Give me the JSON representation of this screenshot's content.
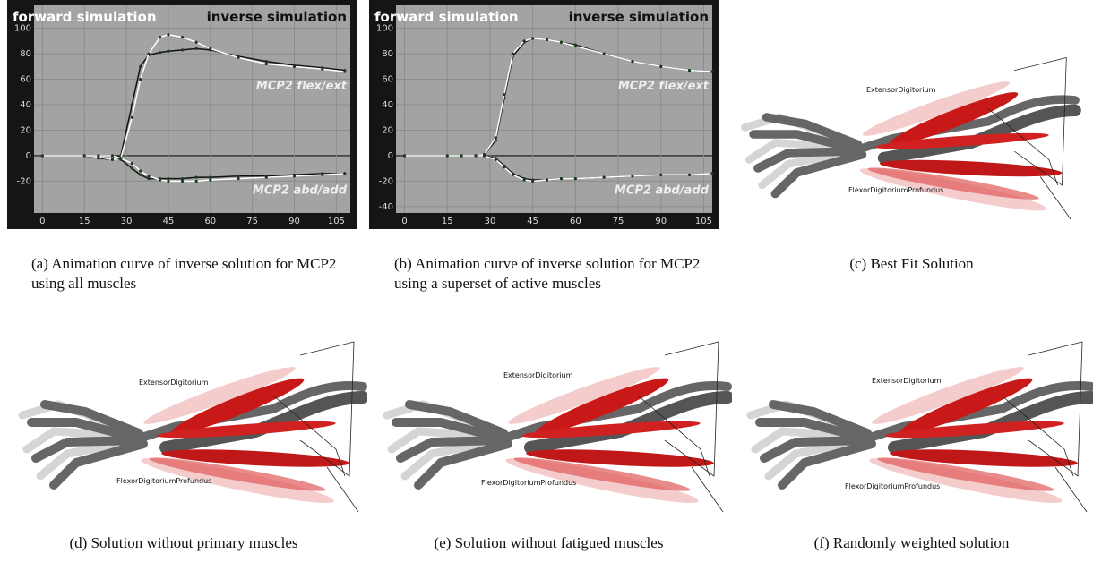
{
  "chart_data": [
    {
      "type": "line",
      "x": [
        0,
        15,
        20,
        25,
        28,
        32,
        35,
        38,
        42,
        45,
        50,
        55,
        60,
        70,
        80,
        90,
        100,
        108
      ],
      "xlim": [
        -3,
        110
      ],
      "xticks": [
        0,
        15,
        30,
        45,
        60,
        75,
        90,
        105
      ],
      "ylim": [
        -45,
        118
      ],
      "yticks": [
        -20,
        0,
        20,
        40,
        60,
        80,
        100
      ],
      "grid": true,
      "annotations": [
        "forward simulation",
        "inverse simulation",
        "MCP2 flex/ext",
        "MCP2 abd/add"
      ],
      "series": [
        {
          "color": "#111111",
          "values": [
            0,
            0,
            -2,
            -3,
            0,
            40,
            70,
            79,
            81,
            82,
            83,
            84,
            83,
            78,
            74,
            71,
            69,
            67
          ]
        },
        {
          "color": "#ffffff",
          "values": [
            0,
            0,
            -1,
            -3,
            -2,
            30,
            60,
            80,
            93,
            95,
            93,
            89,
            84,
            77,
            72,
            70,
            68,
            66
          ]
        },
        {
          "color": "#111111",
          "values": [
            0,
            0,
            0,
            0,
            -3,
            -10,
            -15,
            -18,
            -18,
            -18,
            -18,
            -17,
            -17,
            -16,
            -16,
            -15,
            -14,
            -14
          ]
        },
        {
          "color": "#ffffff",
          "values": [
            0,
            0,
            0,
            0,
            -2,
            -6,
            -12,
            -16,
            -19,
            -20,
            -20,
            -20,
            -19,
            -18,
            -17,
            -16,
            -15,
            -14
          ]
        }
      ]
    },
    {
      "type": "line",
      "x": [
        0,
        15,
        20,
        25,
        28,
        32,
        35,
        38,
        42,
        45,
        50,
        55,
        60,
        70,
        80,
        90,
        100,
        108
      ],
      "xlim": [
        -3,
        108
      ],
      "xticks": [
        0,
        15,
        30,
        45,
        60,
        75,
        90,
        105
      ],
      "ylim": [
        -45,
        118
      ],
      "yticks": [
        -40,
        -20,
        0,
        20,
        40,
        60,
        80,
        100
      ],
      "grid": true,
      "annotations": [
        "forward simulation",
        "inverse simulation",
        "MCP2 flex/ext",
        "MCP2 abd/add"
      ],
      "series": [
        {
          "color": "#111111",
          "values": [
            0,
            0,
            0,
            0,
            1,
            12,
            45,
            78,
            89,
            92,
            91,
            89,
            87,
            80,
            74,
            70,
            67,
            66
          ]
        },
        {
          "color": "#ffffff",
          "values": [
            0,
            0,
            0,
            0,
            1,
            14,
            48,
            80,
            90,
            92,
            91,
            89,
            86,
            80,
            74,
            70,
            67,
            66
          ]
        },
        {
          "color": "#111111",
          "values": [
            0,
            0,
            0,
            0,
            0,
            -2,
            -8,
            -14,
            -18,
            -19,
            -19,
            -18,
            -18,
            -17,
            -16,
            -15,
            -15,
            -14
          ]
        },
        {
          "color": "#ffffff",
          "values": [
            0,
            0,
            0,
            0,
            0,
            -3,
            -9,
            -15,
            -19,
            -20,
            -19,
            -18,
            -18,
            -17,
            -16,
            -15,
            -15,
            -14
          ]
        }
      ]
    }
  ],
  "figures": [
    {
      "label": "(a)",
      "caption": "Animation curve of inverse solution for MCP2 using all muscles"
    },
    {
      "label": "(b)",
      "caption": "Animation curve of inverse solution for MCP2 using a superset of active muscles"
    },
    {
      "label": "(c)",
      "caption": "Best Fit Solution",
      "labels": [
        "ExtensorDigitorium",
        "FlexorDigitoriumProfundus"
      ]
    },
    {
      "label": "(d)",
      "caption": "Solution without primary muscles",
      "labels": [
        "ExtensorDigitorium",
        "FlexorDigitoriumProfundus"
      ]
    },
    {
      "label": "(e)",
      "caption": "Solution without fatigued muscles",
      "labels": [
        "ExtensorDigitorium",
        "FlexorDigitoriumProfundus"
      ]
    },
    {
      "label": "(f)",
      "caption": "Randomly weighted solution",
      "labels": [
        "ExtensorDigitorium",
        "FlexorDigitoriumProfundus"
      ]
    }
  ]
}
